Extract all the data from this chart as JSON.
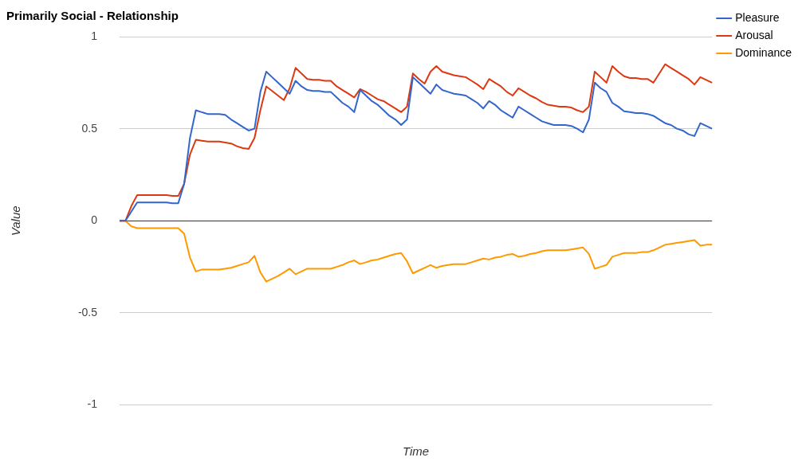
{
  "chart_data": {
    "type": "line",
    "title": "Primarily Social - Relationship",
    "xlabel": "Time",
    "ylabel": "Value",
    "categories": [
      null,
      null,
      null,
      null,
      null,
      null,
      null,
      null,
      null,
      null,
      null,
      null,
      null,
      null,
      null,
      null,
      null,
      null,
      null,
      null,
      null,
      null,
      null,
      null,
      null,
      null,
      null,
      null,
      null,
      null,
      null,
      null,
      null,
      null,
      null,
      null,
      null,
      null,
      null,
      null,
      null,
      null,
      null,
      null,
      null,
      null,
      null,
      null,
      null,
      null,
      null,
      null,
      null,
      null,
      null,
      null,
      null,
      null,
      null,
      null,
      null,
      null,
      null,
      null,
      null,
      null,
      null,
      null,
      null,
      null,
      null,
      null,
      null,
      null,
      null,
      null,
      null,
      null,
      null,
      null,
      null,
      null,
      null,
      null,
      null,
      null,
      null,
      null,
      null,
      null,
      null,
      null,
      null,
      null,
      null,
      null,
      null,
      null,
      null,
      null,
      null,
      null
    ],
    "series": [
      {
        "name": "Pleasure",
        "color": "#3366cc",
        "values": [
          0,
          0,
          0.05,
          0.1,
          0.1,
          0.1,
          0.1,
          0.1,
          0.1,
          0.095,
          0.095,
          0.2,
          0.45,
          0.6,
          0.59,
          0.58,
          0.58,
          0.58,
          0.575,
          0.55,
          0.53,
          0.51,
          0.49,
          0.5,
          0.7,
          0.81,
          0.78,
          0.75,
          0.72,
          0.69,
          0.76,
          0.73,
          0.71,
          0.705,
          0.705,
          0.7,
          0.7,
          0.67,
          0.64,
          0.62,
          0.59,
          0.71,
          0.68,
          0.65,
          0.63,
          0.6,
          0.57,
          0.55,
          0.52,
          0.55,
          0.78,
          0.75,
          0.72,
          0.69,
          0.74,
          0.71,
          0.7,
          0.69,
          0.685,
          0.68,
          0.66,
          0.64,
          0.61,
          0.65,
          0.63,
          0.6,
          0.58,
          0.56,
          0.62,
          0.6,
          0.58,
          0.56,
          0.54,
          0.53,
          0.52,
          0.52,
          0.52,
          0.515,
          0.5,
          0.48,
          0.55,
          0.75,
          0.72,
          0.7,
          0.64,
          0.62,
          0.595,
          0.59,
          0.585,
          0.585,
          0.58,
          0.57,
          0.55,
          0.53,
          0.52,
          0.5,
          0.49,
          0.47,
          0.46,
          0.53,
          0.515,
          0.5
        ]
      },
      {
        "name": "Arousal",
        "color": "#dc3912",
        "values": [
          0,
          0,
          0.08,
          0.14,
          0.14,
          0.14,
          0.14,
          0.14,
          0.14,
          0.135,
          0.135,
          0.2,
          0.36,
          0.44,
          0.435,
          0.43,
          0.43,
          0.43,
          0.425,
          0.42,
          0.405,
          0.395,
          0.39,
          0.45,
          0.6,
          0.73,
          0.705,
          0.68,
          0.655,
          0.72,
          0.83,
          0.8,
          0.77,
          0.765,
          0.765,
          0.76,
          0.76,
          0.73,
          0.71,
          0.69,
          0.67,
          0.715,
          0.7,
          0.68,
          0.66,
          0.65,
          0.63,
          0.61,
          0.59,
          0.62,
          0.8,
          0.77,
          0.745,
          0.81,
          0.84,
          0.81,
          0.8,
          0.79,
          0.785,
          0.78,
          0.76,
          0.74,
          0.715,
          0.77,
          0.75,
          0.73,
          0.7,
          0.68,
          0.72,
          0.7,
          0.68,
          0.665,
          0.645,
          0.63,
          0.625,
          0.62,
          0.62,
          0.615,
          0.6,
          0.59,
          0.62,
          0.81,
          0.78,
          0.75,
          0.84,
          0.81,
          0.785,
          0.775,
          0.775,
          0.77,
          0.77,
          0.75,
          0.8,
          0.85,
          0.83,
          0.81,
          0.79,
          0.77,
          0.74,
          0.78,
          0.765,
          0.75
        ]
      },
      {
        "name": "Dominance",
        "color": "#ff9900",
        "values": [
          0,
          0,
          -0.03,
          -0.04,
          -0.04,
          -0.04,
          -0.04,
          -0.04,
          -0.04,
          -0.04,
          -0.04,
          -0.07,
          -0.2,
          -0.275,
          -0.265,
          -0.265,
          -0.265,
          -0.265,
          -0.26,
          -0.255,
          -0.245,
          -0.235,
          -0.225,
          -0.19,
          -0.28,
          -0.33,
          -0.315,
          -0.3,
          -0.28,
          -0.26,
          -0.29,
          -0.275,
          -0.26,
          -0.26,
          -0.26,
          -0.26,
          -0.26,
          -0.25,
          -0.24,
          -0.225,
          -0.215,
          -0.235,
          -0.225,
          -0.215,
          -0.21,
          -0.2,
          -0.19,
          -0.18,
          -0.175,
          -0.22,
          -0.285,
          -0.27,
          -0.255,
          -0.24,
          -0.255,
          -0.245,
          -0.24,
          -0.235,
          -0.235,
          -0.235,
          -0.225,
          -0.215,
          -0.205,
          -0.21,
          -0.2,
          -0.195,
          -0.185,
          -0.18,
          -0.195,
          -0.19,
          -0.18,
          -0.175,
          -0.165,
          -0.16,
          -0.16,
          -0.16,
          -0.16,
          -0.155,
          -0.15,
          -0.145,
          -0.18,
          -0.26,
          -0.25,
          -0.24,
          -0.195,
          -0.185,
          -0.175,
          -0.175,
          -0.175,
          -0.17,
          -0.17,
          -0.16,
          -0.145,
          -0.13,
          -0.125,
          -0.12,
          -0.115,
          -0.11,
          -0.105,
          -0.135,
          -0.13,
          -0.13
        ]
      }
    ],
    "ylim": [
      -1,
      1
    ],
    "yticks": [
      -1,
      -0.5,
      0,
      0.5,
      1
    ],
    "grid": "y",
    "legend": "top right",
    "marker": "none"
  }
}
